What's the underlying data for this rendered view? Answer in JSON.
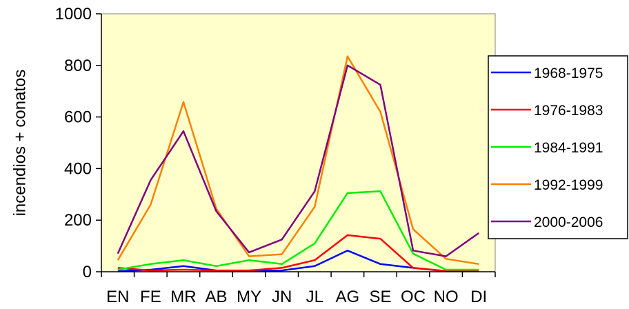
{
  "chart_data": {
    "type": "line",
    "title": "",
    "xlabel": "",
    "ylabel": "incendios + conatos",
    "ylim": [
      0,
      1000
    ],
    "yticks": [
      0,
      200,
      400,
      600,
      800,
      1000
    ],
    "grid": false,
    "legend_position": "right",
    "plot_background": "#ffffcc",
    "categories": [
      "EN",
      "FE",
      "MR",
      "AB",
      "MY",
      "JN",
      "JL",
      "AG",
      "SE",
      "OC",
      "NO",
      "DI"
    ],
    "series": [
      {
        "name": "1968-1975",
        "color": "#0000ff",
        "values": [
          2,
          8,
          22,
          5,
          3,
          5,
          22,
          82,
          30,
          15,
          2,
          2
        ]
      },
      {
        "name": "1976-1983",
        "color": "#ff0000",
        "values": [
          15,
          5,
          8,
          5,
          5,
          15,
          45,
          142,
          128,
          15,
          3,
          2
        ]
      },
      {
        "name": "1984-1991",
        "color": "#00ee00",
        "values": [
          8,
          30,
          45,
          22,
          45,
          30,
          110,
          305,
          312,
          70,
          8,
          8
        ]
      },
      {
        "name": "1992-1999",
        "color": "#ff8000",
        "values": [
          45,
          260,
          658,
          245,
          60,
          68,
          252,
          835,
          620,
          165,
          50,
          30
        ]
      },
      {
        "name": "2000-2006",
        "color": "#800080",
        "values": [
          70,
          355,
          545,
          235,
          75,
          125,
          312,
          800,
          725,
          82,
          60,
          150
        ]
      }
    ]
  }
}
